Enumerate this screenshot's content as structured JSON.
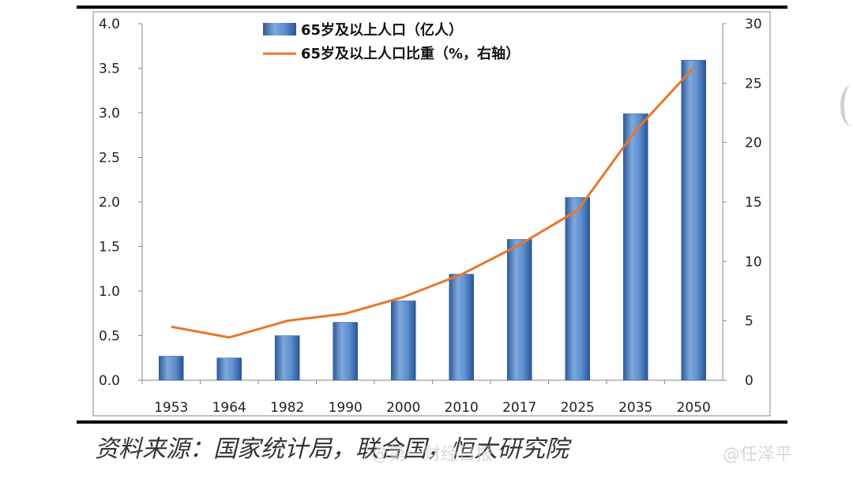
{
  "chart_data": {
    "type": "bar+line",
    "categories": [
      "1953",
      "1964",
      "1982",
      "1990",
      "2000",
      "2010",
      "2017",
      "2025",
      "2035",
      "2050"
    ],
    "series": [
      {
        "name": "65岁及以上人口（亿人）",
        "type": "bar",
        "axis": "left",
        "values": [
          0.27,
          0.25,
          0.5,
          0.65,
          0.89,
          1.19,
          1.58,
          2.05,
          2.99,
          3.59
        ]
      },
      {
        "name": "65岁及以上人口比重（%，右轴）",
        "type": "line",
        "axis": "right",
        "values": [
          4.5,
          3.6,
          5.0,
          5.6,
          7.0,
          8.9,
          11.4,
          14.3,
          21.0,
          26.3
        ]
      }
    ],
    "y_left": {
      "lim": [
        0,
        4.0
      ],
      "ticks": [
        "4.0",
        "3.5",
        "3.0",
        "2.5",
        "2.0",
        "1.5",
        "1.0",
        "0.5",
        "0.0"
      ]
    },
    "y_right": {
      "lim": [
        0,
        30
      ],
      "ticks": [
        "30",
        "25",
        "20",
        "15",
        "10",
        "5",
        "0"
      ]
    },
    "grid": false,
    "legend_position": "top-left",
    "colors": {
      "bar": "#4f81bd",
      "bar_dark": "#2e5c9a",
      "line": "#e8762b",
      "frame": "#000000"
    }
  },
  "source_text": "资料来源：国家统计局，联合国，恒大研究院",
  "watermarks": [
    "@第一财经日报",
    "@任泽平"
  ]
}
